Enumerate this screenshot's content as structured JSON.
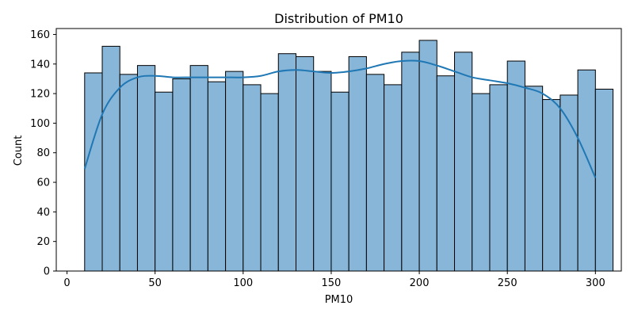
{
  "chart_data": {
    "type": "bar",
    "subtype": "histogram-with-kde",
    "title": "Distribution of PM10",
    "xlabel": "PM10",
    "ylabel": "Count",
    "xlim": [
      -6.1,
      314.7
    ],
    "ylim": [
      0,
      164
    ],
    "xticks": [
      0,
      50,
      100,
      150,
      200,
      250,
      300
    ],
    "yticks": [
      0,
      20,
      40,
      60,
      80,
      100,
      120,
      140,
      160
    ],
    "bin_start": 10,
    "bin_width": 10,
    "counts": [
      134,
      152,
      133,
      139,
      121,
      130,
      139,
      128,
      135,
      126,
      120,
      147,
      145,
      135,
      121,
      145,
      133,
      126,
      148,
      156,
      132,
      148,
      120,
      126,
      142,
      125,
      116,
      119,
      136,
      123
    ],
    "kde": {
      "x": [
        10,
        20,
        30,
        40,
        50,
        60,
        70,
        80,
        90,
        100,
        110,
        120,
        130,
        140,
        150,
        160,
        170,
        180,
        190,
        200,
        210,
        220,
        230,
        240,
        250,
        260,
        270,
        280,
        290,
        300
      ],
      "y": [
        69,
        106,
        124,
        131,
        132,
        131,
        131,
        131,
        131,
        131,
        132,
        135,
        136,
        135,
        134,
        135,
        137,
        140,
        142,
        142,
        139,
        135,
        131,
        129,
        127,
        124,
        120,
        110,
        90,
        63
      ]
    },
    "colors": {
      "bar_fill": "#88b6d9",
      "bar_edge": "#000000",
      "kde_line": "#1f77b4"
    },
    "grid": false,
    "legend": "none"
  }
}
